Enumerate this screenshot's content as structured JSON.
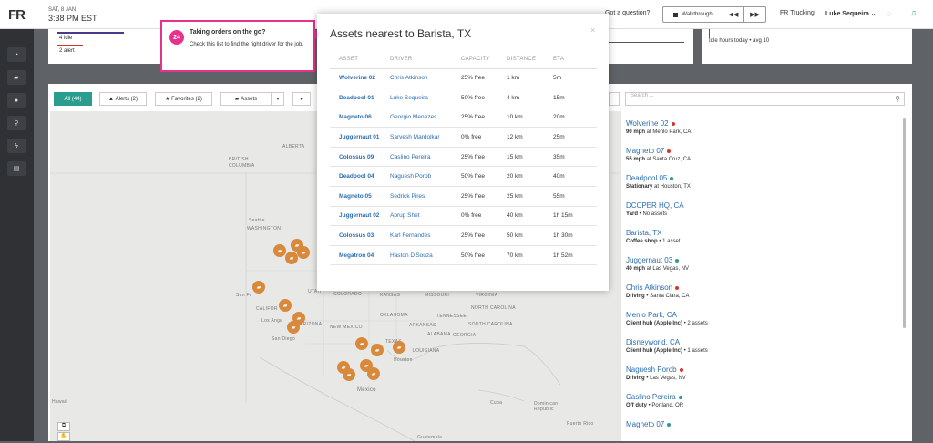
{
  "topbar": {
    "logo": "FR",
    "date": "SAT, 8 JAN",
    "time": "3:38 PM EST",
    "got_question": "Got a question?",
    "walkthrough": "Walkthrough",
    "prev": "◀◀",
    "next": "▶▶",
    "company": "FR Trucking",
    "user": "Luke Sequeira ⌄"
  },
  "cards": {
    "idle": "4 idle",
    "alert": "2 alert",
    "idle_hours": "Idle hours today • avg 10"
  },
  "filters": {
    "all": "All (44)",
    "alerts": "Alerts (2)",
    "favorites": "Favorites (2)",
    "assets": "Assets",
    "search_placeholder": "Search ..."
  },
  "map_labels": [
    {
      "text": "ALBERTA"
    },
    {
      "text": "BRITISH"
    },
    {
      "text": "COLUMBIA"
    },
    {
      "text": "Seattle"
    },
    {
      "text": "WASHINGTON"
    },
    {
      "text": "San Fr"
    },
    {
      "text": "CALIFOR"
    },
    {
      "text": "Los Ange"
    },
    {
      "text": "San Diego"
    },
    {
      "text": "ARIZONA"
    },
    {
      "text": "UTAH"
    },
    {
      "text": "COLORADO"
    },
    {
      "text": "KANSAS"
    },
    {
      "text": "MISSOURI"
    },
    {
      "text": "OKLAHOMA"
    },
    {
      "text": "TENNESSEE"
    },
    {
      "text": "NEW MEXICO"
    },
    {
      "text": "TEXAS"
    },
    {
      "text": "LOUISIANA"
    },
    {
      "text": "Houston"
    },
    {
      "text": "Mexico"
    },
    {
      "text": "Cuba"
    },
    {
      "text": "Dominican Republic"
    },
    {
      "text": "Puerto Rico"
    },
    {
      "text": "Hawaii"
    },
    {
      "text": "Guatemala"
    },
    {
      "text": "VIRGINIA"
    },
    {
      "text": "NORTH CAROLINA"
    },
    {
      "text": "SOUTH CAROLINA"
    },
    {
      "text": "GEORGIA"
    },
    {
      "text": "ALABAMA"
    },
    {
      "text": "ARKANSAS"
    }
  ],
  "tooltip": {
    "step": "24",
    "title": "Taking orders on the go?",
    "body": "Check this list to find the right driver for the job."
  },
  "modal": {
    "title": "Assets nearest to Barista, TX",
    "close": "×",
    "headers": [
      "ASSET",
      "DRIVER",
      "CAPACITY",
      "DISTANCE",
      "ETA"
    ],
    "rows": [
      {
        "asset": "Wolverine 02",
        "driver": "Chris Atkinson",
        "capacity": "25% free",
        "distance": "1 km",
        "eta": "5m"
      },
      {
        "asset": "Deadpool 01",
        "driver": "Luke Sequeira",
        "capacity": "50% free",
        "distance": "4 km",
        "eta": "15m"
      },
      {
        "asset": "Magneto 06",
        "driver": "Georgio Menezes",
        "capacity": "25% free",
        "distance": "10 km",
        "eta": "20m"
      },
      {
        "asset": "Juggernaut 01",
        "driver": "Sarvesh Mardolkar",
        "capacity": "0% free",
        "distance": "12 km",
        "eta": "25m"
      },
      {
        "asset": "Colossus 09",
        "driver": "Caslino Pereira",
        "capacity": "25% free",
        "distance": "15 km",
        "eta": "35m"
      },
      {
        "asset": "Deadpool 04",
        "driver": "Naguesh Porob",
        "capacity": "50% free",
        "distance": "20 km",
        "eta": "40m"
      },
      {
        "asset": "Magneto 05",
        "driver": "Sedrick Pires",
        "capacity": "25% free",
        "distance": "25 km",
        "eta": "55m"
      },
      {
        "asset": "Juggernaut 02",
        "driver": "Aprup Shet",
        "capacity": "0% free",
        "distance": "40 km",
        "eta": "1h 15m"
      },
      {
        "asset": "Colossus 03",
        "driver": "Karl Fernandes",
        "capacity": "25% free",
        "distance": "50 km",
        "eta": "1h 30m"
      },
      {
        "asset": "Megatron 04",
        "driver": "Haston D'Souza",
        "capacity": "50% free",
        "distance": "70 km",
        "eta": "1h 52m"
      }
    ]
  },
  "list": [
    {
      "name": "Wolverine 02",
      "status": "alert",
      "sub_bold": "90 mph",
      "sub": " at Menlo Park, CA"
    },
    {
      "name": "Magneto 07",
      "status": "alert",
      "sub_bold": "55 mph",
      "sub": " at Santa Cruz, CA"
    },
    {
      "name": "Deadpool 05",
      "status": "ok",
      "sub_bold": "Stationary",
      "sub": " at Houston, TX"
    },
    {
      "name": "DCCPER HQ, CA",
      "status": "",
      "sub_bold": "Yard",
      "sub": " • No assets"
    },
    {
      "name": "Barista, TX",
      "status": "",
      "sub_bold": "Coffee shop",
      "sub": " • 1 asset"
    },
    {
      "name": "Juggernaut 03",
      "status": "ok",
      "sub_bold": "40 mph",
      "sub": " at Las Vegas, NV"
    },
    {
      "name": "Chris Atkinson",
      "status": "alert",
      "sub_bold": "Driving",
      "sub": " • Santa Clara, CA"
    },
    {
      "name": "Menlo Park, CA",
      "status": "",
      "sub_bold": "Client hub (Apple Inc)",
      "sub": " • 2 assets"
    },
    {
      "name": "Disneyworld, CA",
      "status": "",
      "sub_bold": "Client hub (Apple Inc)",
      "sub": " • 1 assets"
    },
    {
      "name": "Naguesh Porob",
      "status": "alert",
      "sub_bold": "Driving",
      "sub": " • Las Vegas, NV"
    },
    {
      "name": "Caslino Pereira",
      "status": "ok",
      "sub_bold": "Off duty",
      "sub": " • Portland, OR"
    },
    {
      "name": "Magneto 07",
      "status": "ok",
      "sub_bold": "",
      "sub": ""
    }
  ],
  "colors": {
    "accent": "#2a9d8f",
    "link": "#2a6db1",
    "alert": "#d9342b",
    "tooltip": "#e7318c",
    "truck": "#d9893b"
  }
}
